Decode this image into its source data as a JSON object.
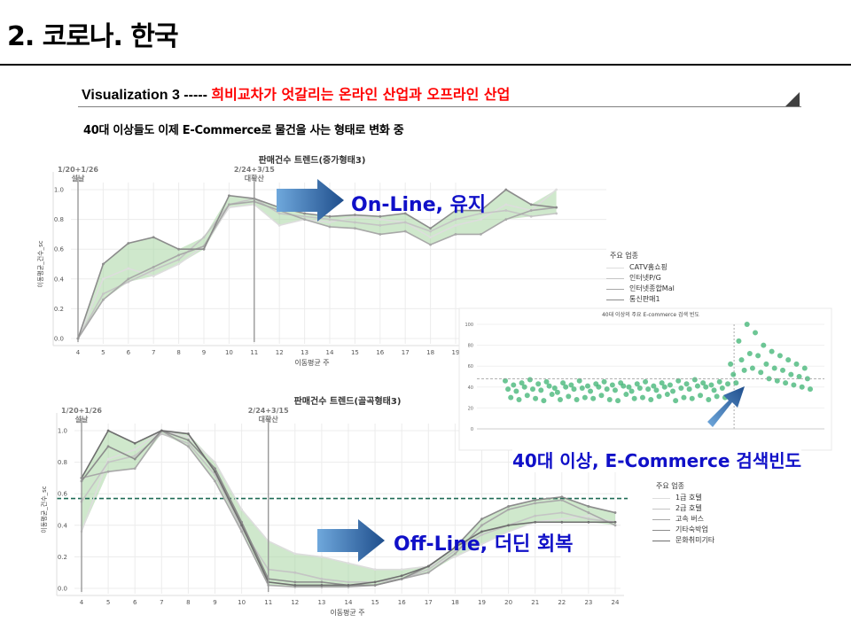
{
  "page": {
    "title": "2. 코로나. 한국",
    "heading_prefix": "Visualization  3 ----- ",
    "heading_highlight": "희비교차가 엇갈리는 온라인 산업과 오프라인 산업",
    "subtitle": "40대 이상들도 이제 E-Commerce로  물건을 사는 형태로 변화 중",
    "annotations": {
      "online": "On-Line, 유지",
      "offline": "Off-Line, 더딘 회복",
      "search": "40대 이상, E-Commerce  검색빈도"
    },
    "colors": {
      "highlight_red": "#ff0000",
      "annotation_blue": "#1010c8",
      "band_green": "#a8d5a2",
      "scatter_green": "#3cb371"
    }
  },
  "chart_data": [
    {
      "type": "line",
      "title": "판매건수 트렌드(증가형태3)",
      "xlabel": "이동평균 주",
      "ylabel": "이동평균_건수_sc",
      "x": [
        4,
        5,
        6,
        7,
        8,
        9,
        10,
        11,
        12,
        13,
        14,
        15,
        16,
        17,
        18,
        19,
        20,
        21,
        22,
        23
      ],
      "xticks": [
        "4",
        "5",
        "6",
        "7",
        "8",
        "9",
        "10",
        "11",
        "12",
        "13",
        "14",
        "15",
        "16",
        "17",
        "18",
        "19"
      ],
      "ylim": [
        0,
        1.0
      ],
      "yticks": [
        "0.0",
        "0.2",
        "0.4",
        "0.6",
        "0.8",
        "1.0"
      ],
      "legend_title": "주요 업종",
      "series": [
        {
          "name": "CATV홈쇼핑",
          "values": [
            0,
            0.4,
            0.47,
            0.42,
            0.5,
            0.62,
            0.88,
            0.9,
            0.76,
            0.8,
            0.78,
            0.82,
            0.8,
            0.78,
            0.68,
            0.76,
            0.8,
            0.9,
            0.86,
            1.0
          ]
        },
        {
          "name": "인터넷P/G",
          "values": [
            0,
            0.3,
            0.38,
            0.46,
            0.53,
            0.68,
            0.9,
            0.94,
            0.84,
            0.82,
            0.8,
            0.78,
            0.76,
            0.78,
            0.72,
            0.8,
            0.84,
            0.86,
            0.82,
            0.84
          ]
        },
        {
          "name": "인터넷종합Mal",
          "values": [
            0,
            0.26,
            0.4,
            0.48,
            0.56,
            0.62,
            0.9,
            0.92,
            0.86,
            0.8,
            0.75,
            0.74,
            0.7,
            0.72,
            0.63,
            0.7,
            0.7,
            0.8,
            0.86,
            0.88
          ]
        },
        {
          "name": "통신판매1",
          "values": [
            0,
            0.5,
            0.64,
            0.68,
            0.6,
            0.6,
            0.96,
            0.94,
            0.88,
            0.84,
            0.82,
            0.83,
            0.82,
            0.84,
            0.74,
            0.86,
            0.86,
            1.0,
            0.9,
            0.88
          ]
        }
      ],
      "vlines": [
        {
          "x": 4,
          "label": "1/20+1/26\n설날"
        },
        {
          "x": 11,
          "label": "2/24+3/15\n대확산"
        }
      ]
    },
    {
      "type": "line",
      "title": "판매건수 트렌드(골곡형태3)",
      "xlabel": "이동평균 주",
      "ylabel": "이동평균_건수_sc",
      "x": [
        4,
        5,
        6,
        7,
        8,
        9,
        10,
        11,
        12,
        13,
        14,
        15,
        16,
        17,
        18,
        19,
        20,
        21,
        22,
        23,
        24
      ],
      "xticks": [
        "4",
        "5",
        "6",
        "7",
        "8",
        "9",
        "10",
        "11",
        "12",
        "13",
        "14",
        "15",
        "16",
        "17",
        "18",
        "19",
        "20",
        "21",
        "22",
        "23",
        "24"
      ],
      "ylim": [
        0,
        1.0
      ],
      "yticks": [
        "0.0",
        "0.2",
        "0.4",
        "0.6",
        "0.8",
        "1.0"
      ],
      "hline": 0.57,
      "legend_title": "주요 업종",
      "series": [
        {
          "name": "1급 호텔",
          "values": [
            0.36,
            0.82,
            0.88,
            1.0,
            0.96,
            0.8,
            0.5,
            0.3,
            0.22,
            0.2,
            0.16,
            0.12,
            0.12,
            0.14,
            0.2,
            0.28,
            0.36,
            0.42,
            0.44,
            0.46,
            0.42
          ]
        },
        {
          "name": "2급 호텔",
          "values": [
            0.55,
            0.8,
            0.84,
            0.98,
            0.92,
            0.72,
            0.38,
            0.12,
            0.1,
            0.06,
            0.04,
            0.04,
            0.06,
            0.12,
            0.24,
            0.34,
            0.4,
            0.46,
            0.48,
            0.44,
            0.42
          ]
        },
        {
          "name": "고속 버스",
          "values": [
            0.7,
            0.74,
            0.76,
            1.0,
            0.9,
            0.68,
            0.36,
            0.02,
            0.01,
            0.01,
            0.01,
            0.02,
            0.06,
            0.1,
            0.22,
            0.4,
            0.5,
            0.54,
            0.56,
            0.48,
            0.4
          ]
        },
        {
          "name": "기타숙박업",
          "values": [
            0.68,
            0.9,
            0.82,
            1.0,
            0.94,
            0.76,
            0.42,
            0.06,
            0.04,
            0.04,
            0.02,
            0.02,
            0.06,
            0.14,
            0.26,
            0.44,
            0.52,
            0.56,
            0.58,
            0.52,
            0.48
          ]
        },
        {
          "name": "문화취미기타",
          "values": [
            0.7,
            1.0,
            0.92,
            1.0,
            0.98,
            0.74,
            0.4,
            0.04,
            0.02,
            0.02,
            0.02,
            0.04,
            0.08,
            0.14,
            0.26,
            0.36,
            0.4,
            0.42,
            0.42,
            0.42,
            0.42
          ]
        }
      ],
      "vlines": [
        {
          "x": 4,
          "label": "1/20+1/26\n설날"
        },
        {
          "x": 11,
          "label": "2/24+3/15\n대확산"
        }
      ]
    },
    {
      "type": "scatter",
      "title": "40대 이상의 주요 E-commerce 검색 빈도",
      "ylim": [
        0,
        100
      ],
      "yticks": [
        "0",
        "20",
        "40",
        "60",
        "80",
        "100"
      ],
      "hline": 48,
      "series": [
        {
          "name": "",
          "values": [
            46,
            38,
            30,
            42,
            36,
            28,
            44,
            40,
            32,
            47,
            38,
            29,
            43,
            37,
            27,
            45,
            41,
            33,
            39,
            35,
            28,
            44,
            40,
            31,
            42,
            38,
            28,
            46,
            39,
            30,
            41,
            36,
            29,
            43,
            40,
            32,
            45,
            38,
            28,
            42,
            37,
            27,
            44,
            41,
            33,
            40,
            36,
            29,
            43,
            39,
            30,
            45,
            38,
            28,
            41,
            37,
            31,
            44,
            40,
            33,
            42,
            36,
            27,
            46,
            39,
            30,
            43,
            38,
            29,
            47,
            41,
            32,
            44,
            40,
            28,
            42,
            37,
            31,
            45,
            39,
            30,
            43,
            62,
            52,
            44,
            84,
            66,
            56,
            100,
            72,
            58,
            92,
            70,
            54,
            80,
            62,
            48,
            74,
            58,
            46,
            70,
            56,
            44,
            66,
            52,
            42,
            62,
            50,
            40,
            58,
            48,
            38
          ]
        }
      ]
    }
  ]
}
